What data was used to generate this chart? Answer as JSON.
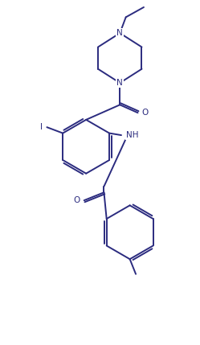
{
  "bg_color": "#ffffff",
  "line_color": "#2b2b7f",
  "line_width": 1.4,
  "font_size": 7.5,
  "figsize": [
    2.49,
    4.29
  ],
  "dpi": 100,
  "xlim": [
    0,
    10
  ],
  "ylim": [
    0,
    17
  ]
}
